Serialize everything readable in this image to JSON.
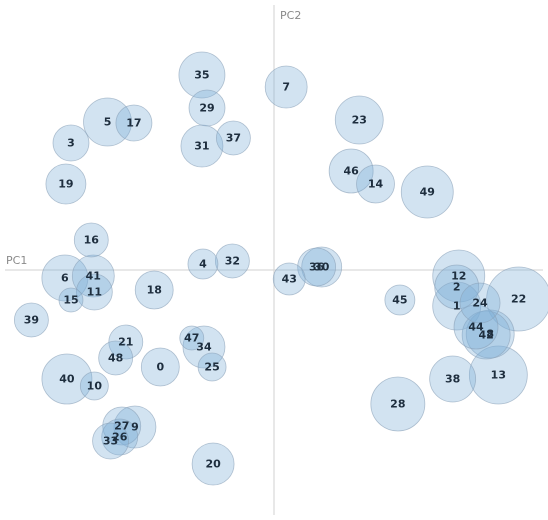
{
  "chart_data": {
    "type": "scatter",
    "xlabel": "PC1",
    "ylabel": "PC2",
    "xlim": [
      -265,
      265
    ],
    "ylim": [
      -245,
      265
    ],
    "grid": false,
    "points": [
      {
        "label": "0",
        "x": -112,
        "y": -97,
        "size": 19
      },
      {
        "label": "1",
        "x": 180,
        "y": -36,
        "size": 24
      },
      {
        "label": "2",
        "x": 180,
        "y": -17,
        "size": 22
      },
      {
        "label": "3",
        "x": -200,
        "y": 127,
        "size": 18
      },
      {
        "label": "4",
        "x": -70,
        "y": 6,
        "size": 15
      },
      {
        "label": "5",
        "x": -164,
        "y": 148,
        "size": 24
      },
      {
        "label": "6",
        "x": -206,
        "y": -8,
        "size": 23
      },
      {
        "label": "7",
        "x": 12,
        "y": 183,
        "size": 21
      },
      {
        "label": "8",
        "x": 213,
        "y": -64,
        "size": 24
      },
      {
        "label": "9",
        "x": -137,
        "y": -157,
        "size": 21
      },
      {
        "label": "10",
        "x": -177,
        "y": -116,
        "size": 14
      },
      {
        "label": "11",
        "x": -177,
        "y": -22,
        "size": 18
      },
      {
        "label": "12",
        "x": 182,
        "y": -6,
        "size": 26
      },
      {
        "label": "13",
        "x": 221,
        "y": -105,
        "size": 29
      },
      {
        "label": "14",
        "x": 100,
        "y": 86,
        "size": 19
      },
      {
        "label": "15",
        "x": -200,
        "y": -30,
        "size": 12
      },
      {
        "label": "16",
        "x": -180,
        "y": 30,
        "size": 17
      },
      {
        "label": "17",
        "x": -138,
        "y": 147,
        "size": 18
      },
      {
        "label": "18",
        "x": -118,
        "y": -20,
        "size": 19
      },
      {
        "label": "19",
        "x": -205,
        "y": 86,
        "size": 20
      },
      {
        "label": "20",
        "x": -60,
        "y": -194,
        "size": 21
      },
      {
        "label": "21",
        "x": -146,
        "y": -72,
        "size": 17
      },
      {
        "label": "22",
        "x": 241,
        "y": -29,
        "size": 32
      },
      {
        "label": "23",
        "x": 84,
        "y": 150,
        "size": 24
      },
      {
        "label": "24",
        "x": 203,
        "y": -33,
        "size": 20
      },
      {
        "label": "25",
        "x": -61,
        "y": -97,
        "size": 14
      },
      {
        "label": "26",
        "x": -152,
        "y": -167,
        "size": 18
      },
      {
        "label": "27",
        "x": -150,
        "y": -156,
        "size": 19
      },
      {
        "label": "28",
        "x": 122,
        "y": -134,
        "size": 27
      },
      {
        "label": "29",
        "x": -66,
        "y": 162,
        "size": 18
      },
      {
        "label": "30",
        "x": 47,
        "y": 3,
        "size": 20
      },
      {
        "label": "31",
        "x": -71,
        "y": 124,
        "size": 21
      },
      {
        "label": "32",
        "x": -41,
        "y": 9,
        "size": 17
      },
      {
        "label": "33",
        "x": -161,
        "y": -171,
        "size": 18
      },
      {
        "label": "34",
        "x": -69,
        "y": -77,
        "size": 21
      },
      {
        "label": "35",
        "x": -71,
        "y": 195,
        "size": 23
      },
      {
        "label": "36",
        "x": 42,
        "y": 3,
        "size": 19
      },
      {
        "label": "37",
        "x": -40,
        "y": 132,
        "size": 17
      },
      {
        "label": "38",
        "x": 176,
        "y": -109,
        "size": 23
      },
      {
        "label": "39",
        "x": -239,
        "y": -50,
        "size": 17
      },
      {
        "label": "40",
        "x": -204,
        "y": -109,
        "size": 25
      },
      {
        "label": "41",
        "x": -178,
        "y": -6,
        "size": 21
      },
      {
        "label": "42",
        "x": 209,
        "y": -65,
        "size": 24
      },
      {
        "label": "43",
        "x": 15,
        "y": -9,
        "size": 16
      },
      {
        "label": "44",
        "x": 199,
        "y": -57,
        "size": 22
      },
      {
        "label": "45",
        "x": 124,
        "y": -30,
        "size": 15
      },
      {
        "label": "46",
        "x": 76,
        "y": 99,
        "size": 22
      },
      {
        "label": "47",
        "x": -81,
        "y": -68,
        "size": 12
      },
      {
        "label": "48",
        "x": -156,
        "y": -88,
        "size": 17
      },
      {
        "label": "49",
        "x": 151,
        "y": 78,
        "size": 26
      }
    ]
  }
}
